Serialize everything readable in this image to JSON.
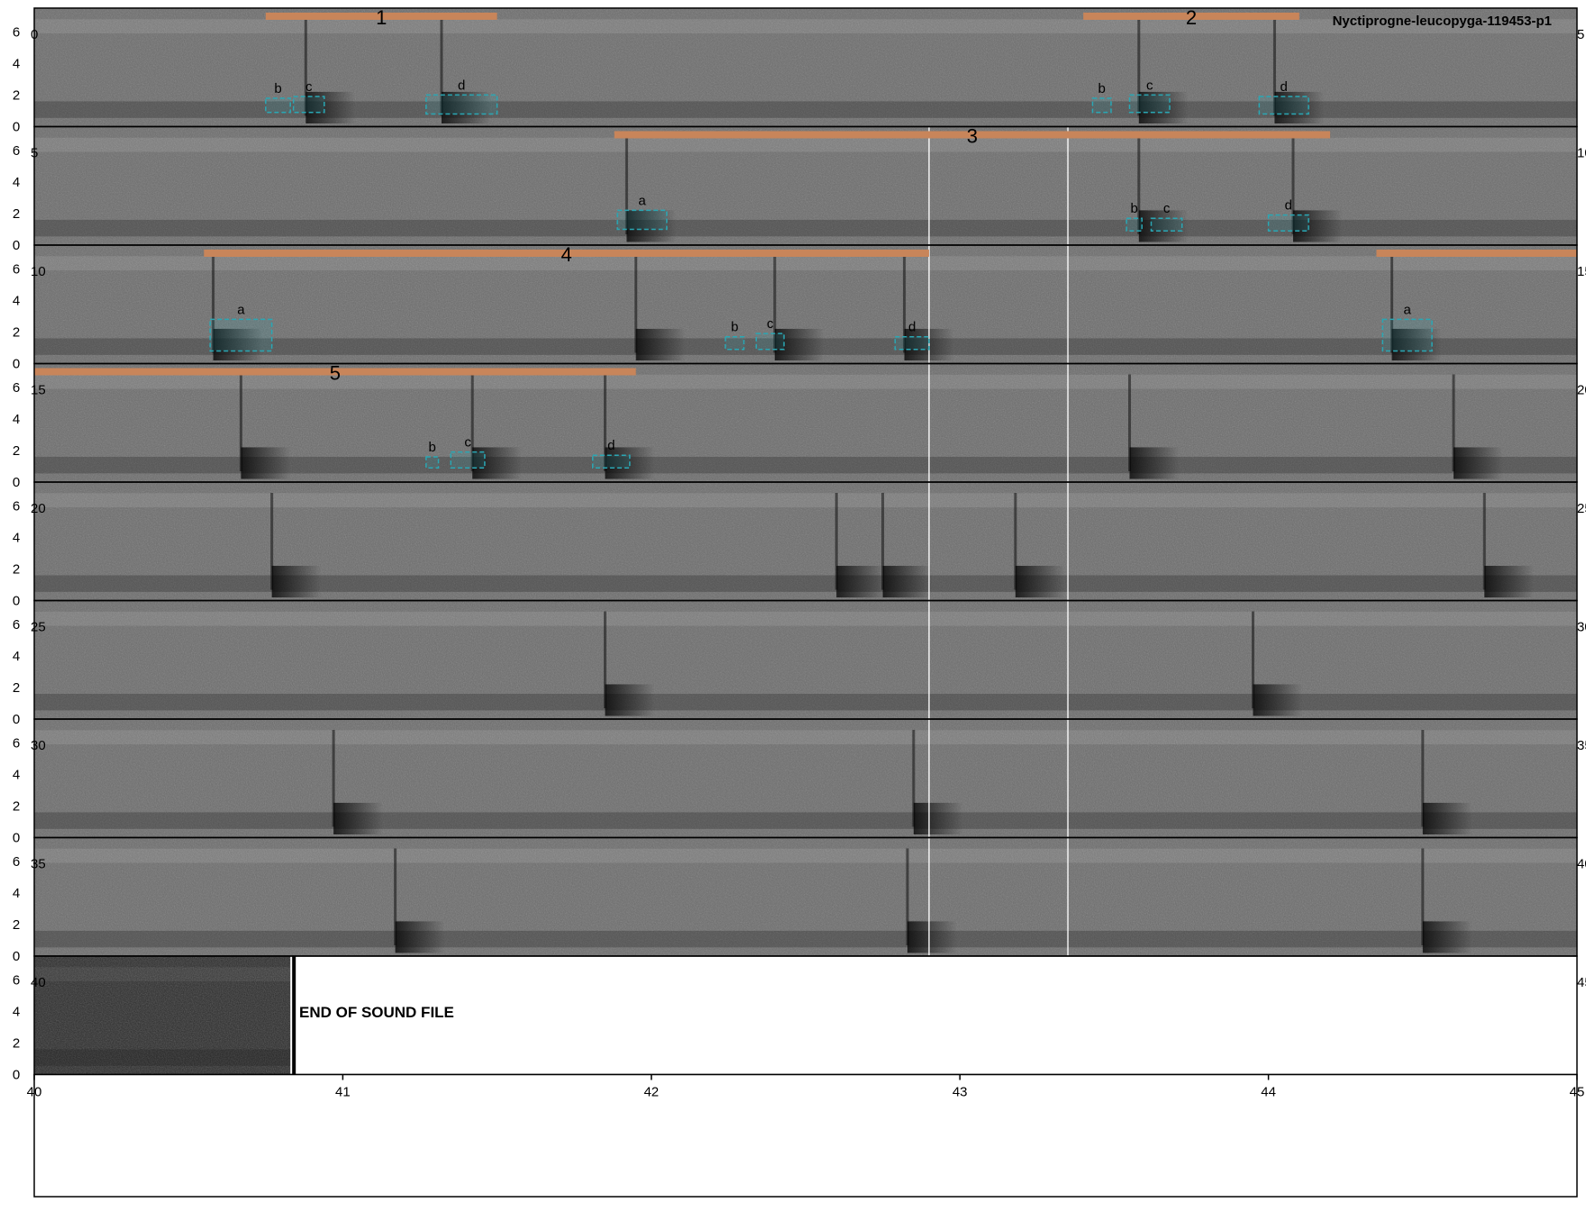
{
  "title": "Nyctiprogne-leucopyga-119453-p1",
  "end_label": "END OF SOUND FILE",
  "colors": {
    "phrase_bar": "#c8855a",
    "note_box": "#2aa7b4",
    "row_border": "#000000",
    "spectrogram_bg": "#6b6b6b",
    "end_spectrogram_bg": "#2a2a2a"
  },
  "chart_data": {
    "type": "spectrogram",
    "rows": 9,
    "seconds_per_row": 5,
    "ylim": [
      0,
      7.5
    ],
    "y_ticks": [
      0,
      2,
      4,
      6
    ],
    "x_axis_ticks": [
      "40",
      "41",
      "42",
      "43",
      "44",
      "45"
    ],
    "x_axis_range": [
      40,
      45
    ],
    "row_start_labels": [
      "0",
      "5",
      "10",
      "15",
      "20",
      "25",
      "30",
      "35",
      "40"
    ],
    "row_end_labels": [
      "5",
      "10",
      "15",
      "20",
      "25",
      "30",
      "35",
      "40",
      "45"
    ],
    "end_of_sound_time": 40.83,
    "phrases": [
      {
        "label": "1",
        "row": 0,
        "start": 0.75,
        "end": 1.5
      },
      {
        "label": "2",
        "row": 0,
        "start": 3.4,
        "end": 4.1
      },
      {
        "label": "3",
        "row": 1,
        "start": 1.88,
        "end": 4.2
      },
      {
        "label": "4",
        "row": 2,
        "start": 0.55,
        "end": 2.9
      },
      {
        "label": "",
        "row": 2,
        "start": 4.35,
        "end": 5.0
      },
      {
        "label": "5",
        "row": 3,
        "start": 0.0,
        "end": 1.95
      }
    ],
    "notes": [
      {
        "label": "b",
        "row": 0,
        "start": 0.75,
        "end": 0.83,
        "fmin": 0.9,
        "fmax": 1.8
      },
      {
        "label": "c",
        "row": 0,
        "start": 0.84,
        "end": 0.94,
        "fmin": 0.9,
        "fmax": 1.9
      },
      {
        "label": "d",
        "row": 0,
        "start": 1.27,
        "end": 1.5,
        "fmin": 0.8,
        "fmax": 2.0
      },
      {
        "label": "b",
        "row": 0,
        "start": 3.43,
        "end": 3.49,
        "fmin": 0.9,
        "fmax": 1.8
      },
      {
        "label": "c",
        "row": 0,
        "start": 3.55,
        "end": 3.68,
        "fmin": 0.9,
        "fmax": 2.0
      },
      {
        "label": "d",
        "row": 0,
        "start": 3.97,
        "end": 4.13,
        "fmin": 0.8,
        "fmax": 1.9
      },
      {
        "label": "a",
        "row": 1,
        "start": 1.89,
        "end": 2.05,
        "fmin": 1.0,
        "fmax": 2.2
      },
      {
        "label": "b",
        "row": 1,
        "start": 3.54,
        "end": 3.59,
        "fmin": 0.9,
        "fmax": 1.7
      },
      {
        "label": "c",
        "row": 1,
        "start": 3.62,
        "end": 3.72,
        "fmin": 0.9,
        "fmax": 1.7
      },
      {
        "label": "d",
        "row": 1,
        "start": 4.0,
        "end": 4.13,
        "fmin": 0.9,
        "fmax": 1.9
      },
      {
        "label": "a",
        "row": 2,
        "start": 0.57,
        "end": 0.77,
        "fmin": 0.8,
        "fmax": 2.8
      },
      {
        "label": "b",
        "row": 2,
        "start": 2.24,
        "end": 2.3,
        "fmin": 0.9,
        "fmax": 1.7
      },
      {
        "label": "c",
        "row": 2,
        "start": 2.34,
        "end": 2.43,
        "fmin": 0.9,
        "fmax": 1.9
      },
      {
        "label": "d",
        "row": 2,
        "start": 2.79,
        "end": 2.9,
        "fmin": 0.9,
        "fmax": 1.7
      },
      {
        "label": "a",
        "row": 2,
        "start": 4.37,
        "end": 4.53,
        "fmin": 0.8,
        "fmax": 2.8
      },
      {
        "label": "b",
        "row": 3,
        "start": 1.27,
        "end": 1.31,
        "fmin": 0.9,
        "fmax": 1.6
      },
      {
        "label": "c",
        "row": 3,
        "start": 1.35,
        "end": 1.46,
        "fmin": 0.9,
        "fmax": 1.9
      },
      {
        "label": "d",
        "row": 3,
        "start": 1.81,
        "end": 1.93,
        "fmin": 0.9,
        "fmax": 1.7
      }
    ],
    "calls": [
      {
        "row": 0,
        "t": 0.88
      },
      {
        "row": 0,
        "t": 1.32
      },
      {
        "row": 0,
        "t": 3.58
      },
      {
        "row": 0,
        "t": 4.02
      },
      {
        "row": 1,
        "t": 1.92
      },
      {
        "row": 1,
        "t": 3.58
      },
      {
        "row": 1,
        "t": 4.08
      },
      {
        "row": 2,
        "t": 0.58
      },
      {
        "row": 2,
        "t": 1.95
      },
      {
        "row": 2,
        "t": 2.4
      },
      {
        "row": 2,
        "t": 2.82
      },
      {
        "row": 2,
        "t": 4.4
      },
      {
        "row": 3,
        "t": 0.67
      },
      {
        "row": 3,
        "t": 1.42
      },
      {
        "row": 3,
        "t": 1.85
      },
      {
        "row": 3,
        "t": 3.55
      },
      {
        "row": 3,
        "t": 4.6
      },
      {
        "row": 4,
        "t": 0.77
      },
      {
        "row": 4,
        "t": 2.6
      },
      {
        "row": 4,
        "t": 2.75
      },
      {
        "row": 4,
        "t": 3.18
      },
      {
        "row": 4,
        "t": 4.7
      },
      {
        "row": 5,
        "t": 1.85
      },
      {
        "row": 5,
        "t": 3.95
      },
      {
        "row": 6,
        "t": 0.97
      },
      {
        "row": 6,
        "t": 2.85
      },
      {
        "row": 6,
        "t": 4.5
      },
      {
        "row": 7,
        "t": 1.17
      },
      {
        "row": 7,
        "t": 2.83
      },
      {
        "row": 7,
        "t": 4.5
      }
    ],
    "marker_times": [
      2.9,
      3.35
    ]
  }
}
